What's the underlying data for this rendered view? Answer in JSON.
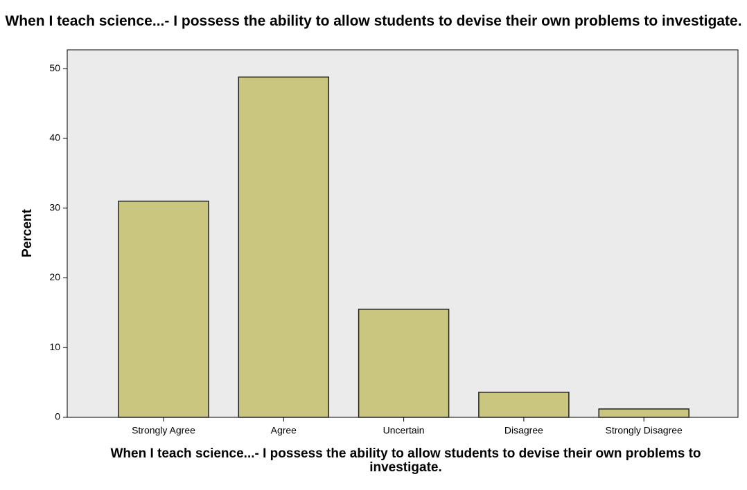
{
  "chart_data": {
    "type": "bar",
    "title": "When I teach science...- I possess the ability to allow students to devise their own problems to investigate.",
    "x_label": "When I teach science...- I possess the ability to allow students to devise their own problems to investigate.",
    "y_label": "Percent",
    "categories": [
      "Strongly Agree",
      "Agree",
      "Uncertain",
      "Disagree",
      "Strongly Disagree"
    ],
    "values": [
      31.0,
      48.8,
      15.5,
      3.6,
      1.2
    ],
    "color": "#cbc67f",
    "ylim": [
      0,
      52.7
    ],
    "yticks": [
      0,
      10,
      20,
      30,
      40,
      50
    ],
    "grid": false
  }
}
